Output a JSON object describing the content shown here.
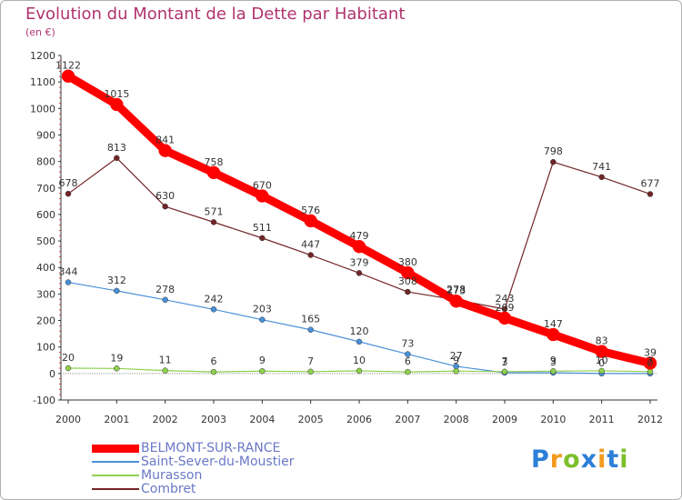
{
  "title": "Evolution du Montant de la Dette par Habitant",
  "subtitle": "(en €)",
  "logo": {
    "letters": [
      "P",
      "r",
      "o",
      "x",
      "i",
      "t",
      "i"
    ],
    "colors": [
      "#2c7fd8",
      "#f39a1e",
      "#7cbf2b",
      "#2c7fd8",
      "#f39a1e",
      "#2c7fd8",
      "#7cbf2b"
    ]
  },
  "chart_data": {
    "type": "line",
    "title": "Evolution du Montant de la Dette par Habitant",
    "ylabel": "(en €)",
    "x": [
      "2000",
      "2001",
      "2002",
      "2003",
      "2004",
      "2005",
      "2006",
      "2007",
      "2008",
      "2009",
      "2010",
      "2011",
      "2012"
    ],
    "ylim": [
      -100,
      1200
    ],
    "yticks": [
      -100,
      0,
      100,
      200,
      300,
      400,
      500,
      600,
      700,
      800,
      900,
      1000,
      1100,
      1200
    ],
    "grid": false,
    "legend_position": "bottom-left",
    "series": [
      {
        "name": "BELMONT-SUR-RANCE",
        "color": "#ff0000",
        "values": [
          1122,
          1015,
          841,
          758,
          670,
          576,
          479,
          380,
          273,
          209,
          147,
          83,
          39
        ],
        "labels": [
          "1122",
          "1015",
          "841",
          "758",
          "670",
          "576",
          "479",
          "380",
          "273",
          "209",
          "147",
          "83",
          "39"
        ]
      },
      {
        "name": "Saint-Sever-du-Moustier",
        "color": "#4a90d9",
        "values": [
          344,
          312,
          278,
          242,
          203,
          165,
          120,
          73,
          27,
          3,
          3,
          0,
          0
        ],
        "labels": [
          "344",
          "312",
          "278",
          "242",
          "203",
          "165",
          "120",
          "73",
          "27",
          "3",
          "3",
          "0",
          "0"
        ]
      },
      {
        "name": "Murasson",
        "color": "#8fd14f",
        "values": [
          20,
          19,
          11,
          6,
          9,
          7,
          10,
          6,
          9,
          7,
          9,
          10,
          7
        ],
        "labels": [
          "20",
          "19",
          "11",
          "6",
          "9",
          "7",
          "10",
          "6",
          "9",
          "7",
          "9",
          "10",
          "7"
        ]
      },
      {
        "name": "Combret",
        "color": "#722527",
        "values": [
          678,
          813,
          630,
          571,
          511,
          447,
          379,
          308,
          278,
          243,
          798,
          741,
          677
        ],
        "labels": [
          "678",
          "813",
          "630",
          "571",
          "511",
          "447",
          "379",
          "308",
          "278",
          "243",
          "798",
          "741",
          "677"
        ]
      }
    ]
  }
}
